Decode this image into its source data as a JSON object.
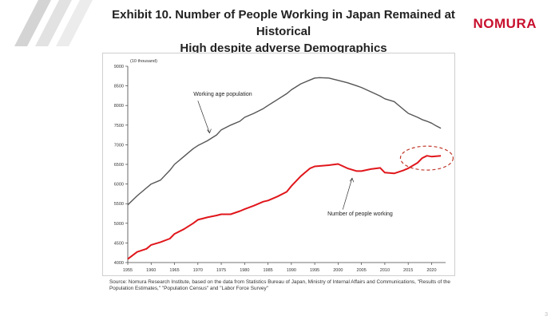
{
  "header": {
    "title_line1": "Exhibit 10. Number of People Working in Japan Remained at Historical",
    "title_line2": "High despite adverse Demographics",
    "brand": "NOMURA"
  },
  "chart_data": {
    "type": "line",
    "title": "",
    "unit_label": "(10 thousand)",
    "xlabel": "",
    "ylabel": "",
    "xlim": [
      1955,
      2023
    ],
    "ylim": [
      4000,
      9000
    ],
    "x_ticks": [
      "1955",
      "1960",
      "1965",
      "1970",
      "1975",
      "1980",
      "1985",
      "1990",
      "1995",
      "2000",
      "2005",
      "2010",
      "2015",
      "2020"
    ],
    "y_ticks": [
      "4000",
      "4500",
      "5000",
      "5500",
      "6000",
      "6500",
      "7000",
      "7500",
      "8000",
      "8500",
      "9000"
    ],
    "grid": false,
    "x": [
      1955,
      1957,
      1959,
      1960,
      1962,
      1964,
      1965,
      1967,
      1969,
      1970,
      1972,
      1974,
      1975,
      1977,
      1979,
      1980,
      1982,
      1984,
      1985,
      1987,
      1989,
      1990,
      1992,
      1994,
      1995,
      1996,
      1998,
      2000,
      2002,
      2004,
      2005,
      2007,
      2009,
      2010,
      2012,
      2014,
      2015,
      2017,
      2018,
      2019,
      2020,
      2021,
      2022
    ],
    "series": [
      {
        "name": "Working age population",
        "values": [
          5470,
          5700,
          5900,
          6000,
          6100,
          6350,
          6500,
          6700,
          6900,
          6980,
          7100,
          7250,
          7380,
          7500,
          7600,
          7700,
          7800,
          7920,
          8000,
          8150,
          8300,
          8400,
          8550,
          8650,
          8700,
          8710,
          8700,
          8640,
          8580,
          8500,
          8460,
          8350,
          8240,
          8170,
          8100,
          7900,
          7800,
          7700,
          7640,
          7600,
          7550,
          7480,
          7420
        ]
      },
      {
        "name": "Number of people working",
        "values": [
          4090,
          4270,
          4350,
          4450,
          4520,
          4610,
          4730,
          4850,
          5000,
          5090,
          5150,
          5200,
          5230,
          5230,
          5310,
          5360,
          5450,
          5550,
          5580,
          5680,
          5800,
          5950,
          6200,
          6400,
          6450,
          6460,
          6480,
          6510,
          6400,
          6330,
          6330,
          6380,
          6410,
          6290,
          6270,
          6350,
          6400,
          6540,
          6660,
          6720,
          6700,
          6710,
          6720
        ]
      }
    ],
    "annotations": [
      {
        "text": "Working age population",
        "x": 1976,
        "y": 8250
      },
      {
        "text": "Number of people working",
        "x": 2003,
        "y": 5200
      }
    ],
    "highlight": {
      "x_center": 2020,
      "y_center": 6660
    }
  },
  "footer": {
    "source": "Source: Nomura Research Institute, based on the data from Statistics Bureau of Japan, Ministry of Internal Affairs and Communications, \"Results of the Population Estimates,\" \"Population Census\" and \"Labor Force Survey\"",
    "page": "3"
  },
  "colors": {
    "working_age_line": "#555555",
    "employed_line": "#e0161b",
    "highlight_circle": "#c0392b",
    "brand": "#c8102e"
  }
}
